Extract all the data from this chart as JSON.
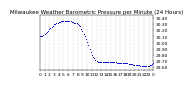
{
  "title": "Milwaukee Weather Barometric Pressure per Minute (24 Hours)",
  "title_fontsize": 4.0,
  "bg_color": "#ffffff",
  "dot_color": "#0000cc",
  "dot_size": 0.5,
  "grid_color": "#aaaaaa",
  "tick_color": "#000000",
  "tick_fontsize": 3.2,
  "xlim": [
    0,
    1440
  ],
  "ylim": [
    29.55,
    30.45
  ],
  "x_tick_positions": [
    0,
    60,
    120,
    180,
    240,
    300,
    360,
    420,
    480,
    540,
    600,
    660,
    720,
    780,
    840,
    900,
    960,
    1020,
    1080,
    1140,
    1200,
    1260,
    1320,
    1380,
    1440
  ],
  "x_tick_labels": [
    "0",
    "1",
    "2",
    "3",
    "4",
    "5",
    "6",
    "7",
    "8",
    "9",
    "10",
    "11",
    "12",
    "13",
    "14",
    "15",
    "16",
    "17",
    "18",
    "19",
    "20",
    "21",
    "22",
    "23",
    "0"
  ],
  "y_ticks": [
    29.6,
    29.7,
    29.8,
    29.9,
    30.0,
    30.1,
    30.2,
    30.3,
    30.4
  ],
  "y_tick_labels": [
    "29.60",
    "29.70",
    "29.80",
    "29.90",
    "30.00",
    "30.10",
    "30.20",
    "30.30",
    "30.40"
  ],
  "grid_x_positions": [
    60,
    120,
    180,
    240,
    300,
    360,
    420,
    480,
    540,
    600,
    660,
    720,
    780,
    840,
    900,
    960,
    1020,
    1080,
    1140,
    1200,
    1260,
    1320,
    1380
  ],
  "data_x": [
    0,
    15,
    30,
    45,
    60,
    75,
    90,
    105,
    120,
    135,
    150,
    165,
    180,
    195,
    210,
    225,
    240,
    255,
    270,
    285,
    300,
    315,
    330,
    345,
    360,
    375,
    390,
    405,
    420,
    435,
    450,
    465,
    480,
    495,
    510,
    525,
    540,
    555,
    570,
    585,
    600,
    615,
    630,
    645,
    660,
    675,
    690,
    705,
    720,
    735,
    750,
    765,
    780,
    795,
    810,
    825,
    840,
    855,
    870,
    885,
    900,
    915,
    930,
    945,
    960,
    975,
    990,
    1005,
    1020,
    1035,
    1050,
    1065,
    1080,
    1095,
    1110,
    1125,
    1140,
    1155,
    1170,
    1185,
    1200,
    1215,
    1230,
    1245,
    1260,
    1275,
    1290,
    1305,
    1320,
    1335,
    1350,
    1365,
    1380,
    1395,
    1410,
    1425,
    1440
  ],
  "data_y": [
    30.1,
    30.1,
    30.11,
    30.12,
    30.13,
    30.15,
    30.17,
    30.19,
    30.21,
    30.23,
    30.25,
    30.27,
    30.29,
    30.3,
    30.31,
    30.32,
    30.33,
    30.33,
    30.34,
    30.34,
    30.35,
    30.35,
    30.35,
    30.35,
    30.35,
    30.35,
    30.34,
    30.33,
    30.33,
    30.32,
    30.32,
    30.31,
    30.3,
    30.28,
    30.26,
    30.22,
    30.18,
    30.14,
    30.1,
    30.06,
    30.01,
    29.96,
    29.9,
    29.85,
    29.8,
    29.76,
    29.74,
    29.72,
    29.7,
    29.69,
    29.68,
    29.68,
    29.68,
    29.68,
    29.68,
    29.68,
    29.68,
    29.68,
    29.68,
    29.68,
    29.68,
    29.68,
    29.68,
    29.68,
    29.68,
    29.67,
    29.67,
    29.67,
    29.67,
    29.67,
    29.67,
    29.66,
    29.66,
    29.66,
    29.66,
    29.65,
    29.65,
    29.65,
    29.65,
    29.64,
    29.64,
    29.64,
    29.63,
    29.63,
    29.63,
    29.62,
    29.62,
    29.62,
    29.61,
    29.61,
    29.61,
    29.61,
    29.62,
    29.63,
    29.64,
    29.65,
    29.66
  ]
}
